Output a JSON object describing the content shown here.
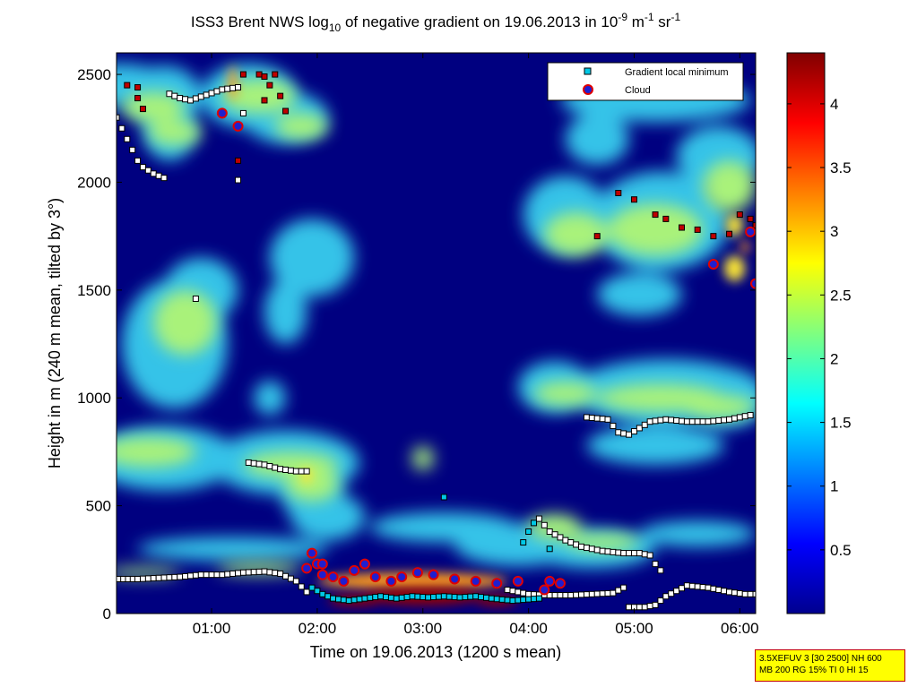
{
  "chart_data": {
    "type": "heatmap",
    "title": {
      "main_a": "ISS3 Brent NWS log",
      "sub_10": "10",
      "main_b": " of negative gradient on 19.06.2013 in 10",
      "sup_1": "-9",
      "main_c": " m",
      "sup_2": "-1",
      "main_d": " sr",
      "sup_3": "-1"
    },
    "xlabel": "Time on 19.06.2013 (1200 s mean)",
    "ylabel": "Height in m (240 m mean, tilted by 3°)",
    "x_range_hours": [
      0.1,
      6.15
    ],
    "ylim": [
      0,
      2600
    ],
    "x_ticks": [
      {
        "label": "01:00",
        "value": 1.0
      },
      {
        "label": "02:00",
        "value": 2.0
      },
      {
        "label": "03:00",
        "value": 3.0
      },
      {
        "label": "04:00",
        "value": 4.0
      },
      {
        "label": "05:00",
        "value": 5.0
      },
      {
        "label": "06:00",
        "value": 6.0
      }
    ],
    "y_ticks": [
      {
        "label": "0",
        "value": 0
      },
      {
        "label": "500",
        "value": 500
      },
      {
        "label": "1000",
        "value": 1000
      },
      {
        "label": "1500",
        "value": 1500
      },
      {
        "label": "2000",
        "value": 2000
      },
      {
        "label": "2500",
        "value": 2500
      }
    ],
    "colorbar": {
      "range": [
        0,
        4.4
      ],
      "ticks": [
        {
          "label": "0.5",
          "value": 0.5
        },
        {
          "label": "1",
          "value": 1
        },
        {
          "label": "1.5",
          "value": 1.5
        },
        {
          "label": "2",
          "value": 2
        },
        {
          "label": "2.5",
          "value": 2.5
        },
        {
          "label": "3",
          "value": 3
        },
        {
          "label": "3.5",
          "value": 3.5
        },
        {
          "label": "4",
          "value": 4
        }
      ],
      "colormap": "jet"
    },
    "legend": {
      "position": "top-right",
      "entries": [
        {
          "name": "Gradient local minimum",
          "marker": "square",
          "color": "#00c8e6"
        },
        {
          "name": "Cloud",
          "marker": "circle",
          "color": "#e00000"
        }
      ]
    },
    "colors": {
      "background": "#000080",
      "gradient_min_face": "#ffffff",
      "gradient_min_edge": "#000000",
      "cloud_face": "#1f1fd0",
      "cloud_edge": "#e8e8e8",
      "infobox_bg": "#ffff00",
      "infobox_border": "#c00000"
    },
    "layers": [
      {
        "name": "cyan",
        "value": 1.6,
        "color": "#35c3e8",
        "blobs": [
          [
            0.15,
            2450,
            0.45,
            100
          ],
          [
            0.55,
            2400,
            0.35,
            140
          ],
          [
            0.6,
            2250,
            0.25,
            150
          ],
          [
            1.35,
            2400,
            0.45,
            150
          ],
          [
            1.7,
            2300,
            0.4,
            120
          ],
          [
            0.65,
            1250,
            0.5,
            300
          ],
          [
            0.9,
            1500,
            0.35,
            150
          ],
          [
            1.95,
            1650,
            0.4,
            180
          ],
          [
            1.7,
            1400,
            0.2,
            150
          ],
          [
            1.55,
            1000,
            0.15,
            80
          ],
          [
            0.55,
            720,
            0.7,
            150
          ],
          [
            1.7,
            700,
            0.7,
            150
          ],
          [
            1.95,
            580,
            0.3,
            170
          ],
          [
            2.1,
            450,
            0.35,
            110
          ],
          [
            1.2,
            300,
            0.9,
            55
          ],
          [
            3.2,
            400,
            0.7,
            70
          ],
          [
            3.9,
            320,
            0.6,
            100
          ],
          [
            4.6,
            300,
            0.6,
            90
          ],
          [
            5.6,
            370,
            0.55,
            60
          ],
          [
            4.25,
            1050,
            0.35,
            120
          ],
          [
            5.3,
            1030,
            0.9,
            150
          ],
          [
            5.85,
            1000,
            0.4,
            140
          ],
          [
            5.2,
            780,
            0.65,
            90
          ],
          [
            4.35,
            1850,
            0.4,
            180
          ],
          [
            5.25,
            1820,
            0.65,
            230
          ],
          [
            5.8,
            2120,
            0.4,
            140
          ],
          [
            5.05,
            1480,
            0.4,
            100
          ],
          [
            5.2,
            2380,
            0.9,
            100
          ],
          [
            4.65,
            2200,
            0.3,
            120
          ]
        ]
      },
      {
        "name": "green",
        "value": 2.3,
        "color": "#a9f27a",
        "blobs": [
          [
            0.45,
            2350,
            0.3,
            70
          ],
          [
            0.65,
            2230,
            0.25,
            60
          ],
          [
            1.45,
            2400,
            0.35,
            80
          ],
          [
            1.85,
            2260,
            0.25,
            60
          ],
          [
            0.75,
            1350,
            0.3,
            150
          ],
          [
            0.4,
            750,
            0.45,
            70
          ],
          [
            1.75,
            690,
            0.45,
            60
          ],
          [
            1.95,
            600,
            0.25,
            80
          ],
          [
            3.0,
            720,
            0.1,
            55
          ],
          [
            4.25,
            400,
            0.25,
            60
          ],
          [
            4.7,
            330,
            0.35,
            40
          ],
          [
            4.35,
            1020,
            0.3,
            55
          ],
          [
            5.25,
            1000,
            0.6,
            65
          ],
          [
            5.8,
            960,
            0.35,
            55
          ],
          [
            4.45,
            1760,
            0.3,
            100
          ],
          [
            5.2,
            1780,
            0.45,
            120
          ],
          [
            5.9,
            1980,
            0.25,
            120
          ],
          [
            1.45,
            210,
            0.4,
            28
          ],
          [
            0.35,
            190,
            0.35,
            22
          ]
        ]
      },
      {
        "name": "yellow",
        "value": 2.9,
        "color": "#fbe536",
        "blobs": [
          [
            1.9,
            640,
            0.05,
            40
          ],
          [
            5.95,
            1600,
            0.1,
            60
          ],
          [
            5.95,
            1800,
            0.08,
            50
          ]
        ]
      },
      {
        "name": "orange",
        "value": 3.5,
        "color": "#ff9a1a",
        "blobs": [
          [
            1.2,
            2460,
            0.04,
            80
          ],
          [
            2.9,
            150,
            0.9,
            40
          ],
          [
            6.05,
            1700,
            0.04,
            30
          ]
        ]
      },
      {
        "name": "red",
        "value": 4.3,
        "color": "#9a0000",
        "blobs": [
          [
            3.0,
            80,
            0.55,
            40
          ],
          [
            2.35,
            60,
            0.25,
            25
          ],
          [
            3.7,
            60,
            0.2,
            25
          ]
        ]
      }
    ],
    "gradient_minimum_series": [
      {
        "name": "low_layer",
        "color": "#ffffff",
        "points": [
          [
            0.12,
            160
          ],
          [
            0.3,
            160
          ],
          [
            0.5,
            165
          ],
          [
            0.7,
            170
          ],
          [
            0.9,
            180
          ],
          [
            1.1,
            180
          ],
          [
            1.3,
            190
          ],
          [
            1.5,
            195
          ],
          [
            1.65,
            185
          ],
          [
            1.8,
            150
          ],
          [
            1.9,
            100
          ]
        ]
      },
      {
        "name": "low_layer_2",
        "color": "#ffffff",
        "points": [
          [
            3.8,
            110
          ],
          [
            4.0,
            90
          ],
          [
            4.2,
            85
          ],
          [
            4.4,
            85
          ],
          [
            4.6,
            90
          ],
          [
            4.8,
            95
          ],
          [
            4.9,
            120
          ]
        ]
      },
      {
        "name": "late_low",
        "color": "#ffffff",
        "points": [
          [
            4.95,
            30
          ],
          [
            5.1,
            30
          ],
          [
            5.2,
            40
          ],
          [
            5.3,
            80
          ],
          [
            5.5,
            130
          ],
          [
            5.7,
            120
          ],
          [
            5.9,
            100
          ],
          [
            6.05,
            90
          ],
          [
            6.15,
            90
          ]
        ]
      },
      {
        "name": "mid_04",
        "color": "#ffffff",
        "points": [
          [
            4.1,
            440
          ],
          [
            4.2,
            380
          ],
          [
            4.35,
            340
          ],
          [
            4.5,
            310
          ],
          [
            4.7,
            290
          ],
          [
            4.9,
            280
          ],
          [
            5.05,
            280
          ],
          [
            5.15,
            270
          ],
          [
            5.2,
            230
          ],
          [
            5.25,
            200
          ]
        ]
      },
      {
        "name": "mid_01",
        "color": "#ffffff",
        "points": [
          [
            1.35,
            700
          ],
          [
            1.5,
            690
          ],
          [
            1.65,
            670
          ],
          [
            1.8,
            660
          ],
          [
            1.9,
            660
          ]
        ]
      },
      {
        "name": "high_late",
        "color": "#ffffff",
        "points": [
          [
            4.55,
            910
          ],
          [
            4.75,
            900
          ],
          [
            4.85,
            840
          ],
          [
            4.95,
            830
          ],
          [
            5.05,
            860
          ],
          [
            5.15,
            890
          ],
          [
            5.3,
            900
          ],
          [
            5.5,
            890
          ],
          [
            5.7,
            890
          ],
          [
            5.9,
            900
          ],
          [
            6.1,
            920
          ]
        ]
      },
      {
        "name": "top_left",
        "color": "#ffffff",
        "points": [
          [
            0.1,
            2300
          ],
          [
            0.2,
            2200
          ],
          [
            0.25,
            2150
          ],
          [
            0.3,
            2100
          ],
          [
            0.35,
            2070
          ],
          [
            0.45,
            2040
          ],
          [
            0.55,
            2020
          ]
        ]
      },
      {
        "name": "top_left_2",
        "color": "#ffffff",
        "points": [
          [
            0.6,
            2410
          ],
          [
            0.7,
            2390
          ],
          [
            0.8,
            2380
          ],
          [
            1.1,
            2430
          ],
          [
            1.25,
            2440
          ],
          [
            1.3,
            2320
          ]
        ]
      },
      {
        "name": "isolated",
        "color": "#ffffff",
        "points": [
          [
            0.85,
            1460
          ],
          [
            1.25,
            2010
          ]
        ]
      },
      {
        "name": "cloud_base_cyan",
        "color": "#00c8e6",
        "points": [
          [
            1.95,
            120
          ],
          [
            2.05,
            90
          ],
          [
            2.15,
            70
          ],
          [
            2.3,
            60
          ],
          [
            2.45,
            70
          ],
          [
            2.6,
            80
          ],
          [
            2.75,
            70
          ],
          [
            2.9,
            80
          ],
          [
            3.05,
            75
          ],
          [
            3.2,
            80
          ],
          [
            3.35,
            75
          ],
          [
            3.5,
            80
          ],
          [
            3.65,
            70
          ],
          [
            3.85,
            60
          ],
          [
            4.1,
            70
          ]
        ]
      },
      {
        "name": "misc_cyan",
        "color": "#00c8e6",
        "points": [
          [
            3.2,
            540
          ],
          [
            4.0,
            380
          ],
          [
            4.05,
            420
          ],
          [
            3.95,
            330
          ],
          [
            4.2,
            300
          ]
        ]
      },
      {
        "name": "red_squares",
        "color": "#c00000",
        "points": [
          [
            0.2,
            2450
          ],
          [
            0.3,
            2440
          ],
          [
            0.3,
            2390
          ],
          [
            0.35,
            2340
          ],
          [
            1.3,
            2500
          ],
          [
            1.45,
            2500
          ],
          [
            1.5,
            2490
          ],
          [
            1.6,
            2500
          ],
          [
            1.55,
            2450
          ],
          [
            1.65,
            2400
          ],
          [
            1.5,
            2380
          ],
          [
            1.7,
            2330
          ],
          [
            1.25,
            2100
          ],
          [
            4.65,
            1750
          ],
          [
            4.85,
            1950
          ],
          [
            5.0,
            1920
          ],
          [
            5.2,
            1850
          ],
          [
            5.3,
            1830
          ],
          [
            5.45,
            1790
          ],
          [
            5.6,
            1780
          ],
          [
            5.75,
            1750
          ],
          [
            5.9,
            1760
          ],
          [
            6.0,
            1850
          ],
          [
            6.1,
            1830
          ],
          [
            6.15,
            1800
          ]
        ]
      }
    ],
    "cloud_series": [
      {
        "name": "cloud_low",
        "color": "#e00000",
        "points": [
          [
            1.9,
            210
          ],
          [
            2.0,
            230
          ],
          [
            2.05,
            180
          ],
          [
            2.15,
            170
          ],
          [
            2.25,
            150
          ],
          [
            2.35,
            200
          ],
          [
            2.45,
            230
          ],
          [
            2.55,
            170
          ],
          [
            2.7,
            150
          ],
          [
            2.8,
            170
          ],
          [
            2.95,
            190
          ],
          [
            3.1,
            180
          ],
          [
            3.3,
            160
          ],
          [
            3.5,
            150
          ],
          [
            3.7,
            140
          ],
          [
            4.2,
            150
          ],
          [
            4.3,
            140
          ],
          [
            4.15,
            110
          ],
          [
            3.9,
            150
          ],
          [
            1.95,
            280
          ],
          [
            2.05,
            230
          ]
        ]
      },
      {
        "name": "cloud_high",
        "color": "#e00000",
        "points": [
          [
            1.1,
            2320
          ],
          [
            1.25,
            2260
          ],
          [
            5.75,
            1620
          ],
          [
            6.1,
            1770
          ],
          [
            6.15,
            1530
          ]
        ]
      }
    ]
  },
  "infobox": {
    "line1": "3.5XEFUV 3 [30 2500] NH 600",
    "line2": "MB 200 RG 15% TI 0 HI 15"
  }
}
